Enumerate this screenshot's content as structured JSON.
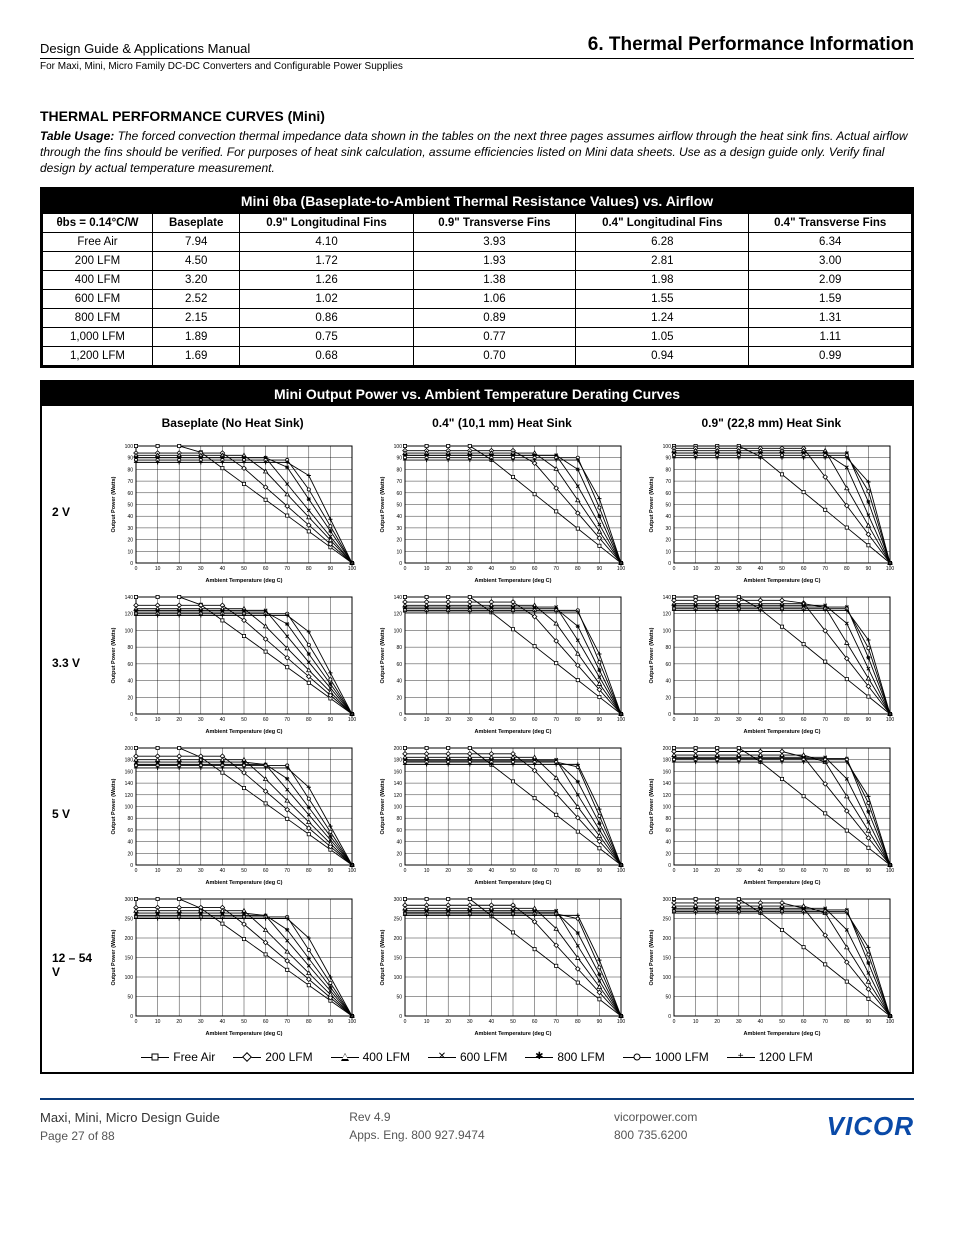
{
  "header": {
    "left": "Design Guide & Applications Manual",
    "right": "6. Thermal Performance Information",
    "sub": "For Maxi, Mini, Micro Family DC-DC Converters and Configurable Power Supplies"
  },
  "section_title": "THERMAL PERFORMANCE CURVES (Mini)",
  "usage": {
    "lead": "Table Usage:",
    "body": "The forced convection thermal impedance data shown in the tables on the next three pages assumes airflow through the heat sink fins. Actual airflow through the fins should be verified. For purposes of heat sink calculation, assume efficiencies listed on Mini data sheets. Use as a design guide only. Verify final design by actual temperature measurement."
  },
  "table": {
    "title": "Mini θba (Baseplate-to-Ambient Thermal Resistance Values) vs. Airflow",
    "corner": "θbs = 0.14°C/W",
    "cols": [
      "Baseplate",
      "0.9\" Longitudinal Fins",
      "0.9\" Transverse Fins",
      "0.4\" Longitudinal Fins",
      "0.4\" Transverse Fins"
    ],
    "rows": [
      {
        "h": "Free Air",
        "v": [
          "7.94",
          "4.10",
          "3.93",
          "6.28",
          "6.34"
        ]
      },
      {
        "h": "200 LFM",
        "v": [
          "4.50",
          "1.72",
          "1.93",
          "2.81",
          "3.00"
        ]
      },
      {
        "h": "400 LFM",
        "v": [
          "3.20",
          "1.26",
          "1.38",
          "1.98",
          "2.09"
        ]
      },
      {
        "h": "600 LFM",
        "v": [
          "2.52",
          "1.02",
          "1.06",
          "1.55",
          "1.59"
        ]
      },
      {
        "h": "800 LFM",
        "v": [
          "2.15",
          "0.86",
          "0.89",
          "1.24",
          "1.31"
        ]
      },
      {
        "h": "1,000 LFM",
        "v": [
          "1.89",
          "0.75",
          "0.77",
          "1.05",
          "1.11"
        ]
      },
      {
        "h": "1,200 LFM",
        "v": [
          "1.69",
          "0.68",
          "0.70",
          "0.94",
          "0.99"
        ]
      }
    ]
  },
  "charts": {
    "title": "Mini Output Power vs. Ambient Temperature Derating Curves",
    "col_heads": [
      "Baseplate (No Heat Sink)",
      "0.4\" (10,1 mm) Heat Sink",
      "0.9\" (22,8 mm) Heat Sink"
    ],
    "row_heads": [
      "2 V",
      "3.3 V",
      "5 V",
      "12 – 54 V"
    ],
    "x_axis": {
      "label": "Ambient Temperature (deg C)",
      "min": 0,
      "max": 100,
      "step": 10,
      "fontsize": 5
    },
    "y_axis_label": "Output Power (Watts)",
    "y_configs": [
      {
        "max": 100,
        "step": 10
      },
      {
        "max": 140,
        "step": 20
      },
      {
        "max": 200,
        "step": 20
      },
      {
        "max": 300,
        "step": 50
      }
    ],
    "grid_color": "#000",
    "bg": "#ffffff",
    "line_color": "#000",
    "line_width": 0.8,
    "marker_size": 3,
    "series_markers": [
      "square",
      "diamond",
      "triangle",
      "x",
      "asterisk",
      "circle",
      "plus"
    ],
    "charts_data": [
      [
        {
          "ymax": 100,
          "zeros": [
            26,
            42,
            53,
            60,
            67,
            72,
            77
          ],
          "starts": [
            100,
            94,
            92,
            90,
            90,
            88,
            86
          ]
        },
        {
          "ymax": 100,
          "zeros": [
            32,
            55,
            65,
            72,
            77,
            81,
            84
          ],
          "starts": [
            100,
            96,
            94,
            92,
            92,
            90,
            88
          ]
        },
        {
          "ymax": 100,
          "zeros": [
            34,
            60,
            70,
            77,
            82,
            85,
            87
          ],
          "starts": [
            100,
            98,
            96,
            94,
            94,
            92,
            90
          ]
        }
      ],
      [
        {
          "ymax": 140,
          "zeros": [
            25,
            42,
            52,
            60,
            66,
            71,
            76
          ],
          "starts": [
            140,
            130,
            126,
            124,
            122,
            120,
            118
          ]
        },
        {
          "ymax": 140,
          "zeros": [
            31,
            54,
            64,
            71,
            76,
            80,
            83
          ],
          "starts": [
            140,
            134,
            130,
            128,
            126,
            124,
            122
          ]
        },
        {
          "ymax": 140,
          "zeros": [
            33,
            59,
            69,
            76,
            81,
            84,
            86
          ],
          "starts": [
            140,
            136,
            132,
            130,
            128,
            126,
            124
          ]
        }
      ],
      [
        {
          "ymax": 200,
          "zeros": [
            24,
            41,
            51,
            59,
            65,
            70,
            75
          ],
          "starts": [
            200,
            186,
            180,
            176,
            172,
            170,
            166
          ]
        },
        {
          "ymax": 200,
          "zeros": [
            30,
            53,
            63,
            70,
            75,
            79,
            82
          ],
          "starts": [
            200,
            190,
            184,
            180,
            178,
            176,
            172
          ]
        },
        {
          "ymax": 200,
          "zeros": [
            32,
            58,
            68,
            75,
            80,
            83,
            85
          ],
          "starts": [
            200,
            194,
            188,
            184,
            182,
            180,
            176
          ]
        }
      ],
      [
        {
          "ymax": 300,
          "zeros": [
            24,
            41,
            51,
            59,
            65,
            70,
            75
          ],
          "starts": [
            300,
            278,
            270,
            264,
            258,
            254,
            250
          ]
        },
        {
          "ymax": 300,
          "zeros": [
            30,
            53,
            63,
            70,
            75,
            79,
            82
          ],
          "starts": [
            300,
            284,
            276,
            270,
            266,
            262,
            258
          ]
        },
        {
          "ymax": 300,
          "zeros": [
            32,
            58,
            68,
            75,
            80,
            83,
            85
          ],
          "starts": [
            300,
            290,
            282,
            276,
            272,
            268,
            264
          ]
        }
      ]
    ],
    "legend": [
      {
        "marker": "square",
        "label": "Free Air"
      },
      {
        "marker": "diamond",
        "label": "200 LFM"
      },
      {
        "marker": "triangle",
        "label": "400 LFM"
      },
      {
        "marker": "x",
        "label": "600 LFM"
      },
      {
        "marker": "asterisk",
        "label": "800 LFM"
      },
      {
        "marker": "circle",
        "label": "1000 LFM"
      },
      {
        "marker": "plus",
        "label": "1200 LFM"
      }
    ]
  },
  "footer": {
    "title": "Maxi, Mini, Micro Design Guide",
    "page": "Page 27 of 88",
    "rev": "Rev 4.9",
    "apps": "Apps. Eng. 800 927.9474",
    "web": "vicorpower.com",
    "phone": "800 735.6200",
    "logo": "VICOR"
  }
}
